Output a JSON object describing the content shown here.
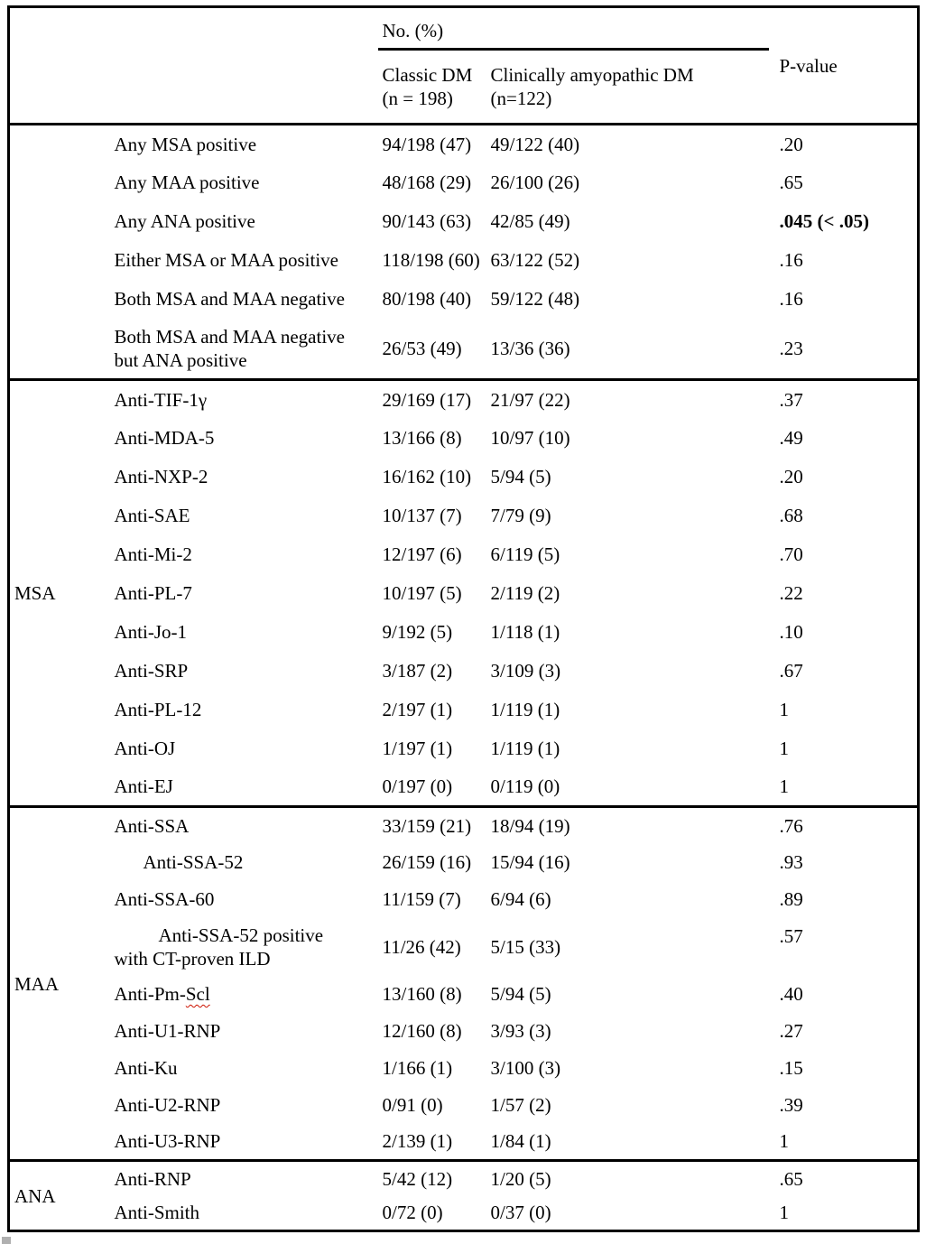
{
  "colors": {
    "border": "#000000",
    "squiggle": "#cc1100",
    "scrollbar_fragment": "#b0b0b0"
  },
  "table": {
    "header": {
      "no_pct": "No. (%)",
      "classic_line1": "Classic DM",
      "classic_line2": "(n = 198)",
      "amyopathic_line1": "Clinically amyopathic DM",
      "amyopathic_line2": "(n=122)",
      "p": "P-value"
    },
    "sections": [
      {
        "group": "",
        "rows": [
          {
            "label": "Any MSA positive",
            "classic": "94/198 (47)",
            "amyopathic": "49/122 (40)",
            "p": ".20"
          },
          {
            "label": "Any MAA positive",
            "classic": "48/168 (29)",
            "amyopathic": "26/100 (26)",
            "p": ".65"
          },
          {
            "label": "Any ANA positive",
            "classic": "90/143 (63)",
            "amyopathic": "42/85 (49)",
            "p": ".045 (< .05)",
            "bold_p": true
          },
          {
            "label": "Either MSA or MAA positive",
            "classic": "118/198 (60)",
            "amyopathic": "63/122 (52)",
            "p": ".16"
          },
          {
            "label": "Both MSA and MAA negative",
            "classic": "80/198 (40)",
            "amyopathic": "59/122 (48)",
            "p": ".16"
          },
          {
            "label_lines": [
              "Both MSA and MAA negative",
              "but ANA positive"
            ],
            "classic": "26/53 (49)",
            "amyopathic": "13/36 (36)",
            "p": ".23"
          }
        ]
      },
      {
        "group": "MSA",
        "rows": [
          {
            "label": "Anti-TIF-1γ",
            "classic": "29/169 (17)",
            "amyopathic": "21/97 (22)",
            "p": ".37"
          },
          {
            "label": "Anti-MDA-5",
            "classic": "13/166 (8)",
            "amyopathic": "10/97 (10)",
            "p": ".49"
          },
          {
            "label": "Anti-NXP-2",
            "classic": "16/162 (10)",
            "amyopathic": "5/94 (5)",
            "p": ".20"
          },
          {
            "label": "Anti-SAE",
            "classic": "10/137 (7)",
            "amyopathic": "7/79 (9)",
            "p": ".68"
          },
          {
            "label": "Anti-Mi-2",
            "classic": "12/197 (6)",
            "amyopathic": "6/119 (5)",
            "p": ".70"
          },
          {
            "label": "Anti-PL-7",
            "classic": "10/197 (5)",
            "amyopathic": "2/119 (2)",
            "p": ".22"
          },
          {
            "label": "Anti-Jo-1",
            "classic": "9/192 (5)",
            "amyopathic": "1/118 (1)",
            "p": ".10"
          },
          {
            "label": "Anti-SRP",
            "classic": "3/187 (2)",
            "amyopathic": "3/109 (3)",
            "p": ".67"
          },
          {
            "label": "Anti-PL-12",
            "classic": "2/197 (1)",
            "amyopathic": "1/119 (1)",
            "p": "1"
          },
          {
            "label": "Anti-OJ",
            "classic": "1/197 (1)",
            "amyopathic": "1/119 (1)",
            "p": "1"
          },
          {
            "label": "Anti-EJ",
            "classic": "0/197 (0)",
            "amyopathic": "0/119 (0)",
            "p": "1"
          }
        ]
      },
      {
        "group": "MAA",
        "rows": [
          {
            "label": "Anti-SSA",
            "classic": "33/159 (21)",
            "amyopathic": "18/94 (19)",
            "p": ".76"
          },
          {
            "label": "Anti-SSA-52",
            "indent": 1,
            "classic": "26/159 (16)",
            "amyopathic": "15/94 (16)",
            "p": ".93"
          },
          {
            "label": "Anti-SSA-60",
            "classic": "11/159 (7)",
            "amyopathic": "6/94 (6)",
            "p": ".89"
          },
          {
            "label_lines": [
              "Anti-SSA-52 positive",
              "with CT-proven ILD"
            ],
            "indent": 2,
            "classic": "11/26 (42)",
            "amyopathic": "5/15 (33)",
            "p": ".57",
            "p_top": true
          },
          {
            "label_pre": "Anti-Pm-",
            "label_squiggle": "Scl",
            "classic": "13/160 (8)",
            "amyopathic": "5/94 (5)",
            "p": ".40"
          },
          {
            "label": "Anti-U1-RNP",
            "classic": "12/160 (8)",
            "amyopathic": "3/93 (3)",
            "p": ".27"
          },
          {
            "label": "Anti-Ku",
            "classic": "1/166 (1)",
            "amyopathic": "3/100 (3)",
            "p": ".15"
          },
          {
            "label": "Anti-U2-RNP",
            "classic": "0/91 (0)",
            "amyopathic": "1/57 (2)",
            "p": ".39"
          },
          {
            "label": "Anti-U3-RNP",
            "classic": "2/139 (1)",
            "amyopathic": "1/84 (1)",
            "p": "1"
          }
        ]
      },
      {
        "group": "ANA",
        "rows": [
          {
            "label": "Anti-RNP",
            "classic": "5/42 (12)",
            "amyopathic": "1/20 (5)",
            "p": ".65"
          },
          {
            "label": "Anti-Smith",
            "classic": "0/72 (0)",
            "amyopathic": "0/37 (0)",
            "p": "1"
          }
        ]
      }
    ]
  }
}
